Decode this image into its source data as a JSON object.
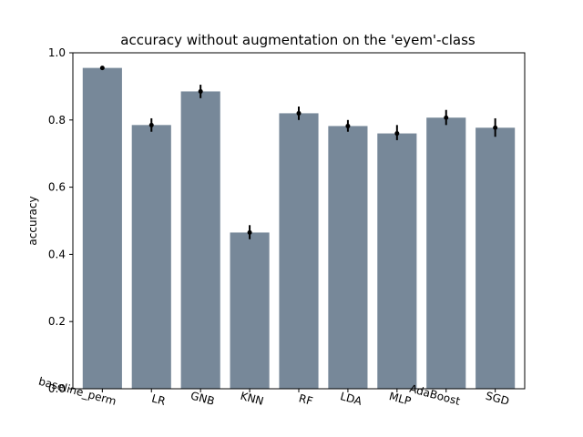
{
  "chart_data": {
    "type": "bar",
    "title": "accuracy without augmentation on the 'eyem'-class",
    "xlabel": "",
    "ylabel": "accuracy",
    "ylim": [
      0.0,
      1.0
    ],
    "yticks": [
      "0.0",
      "0.2",
      "0.4",
      "0.6",
      "0.8",
      "1.0"
    ],
    "categories": [
      "baseline_perm",
      "LR",
      "GNB",
      "KNN",
      "RF",
      "LDA",
      "MLP",
      "AdaBoost",
      "SGD"
    ],
    "values": [
      0.955,
      0.785,
      0.885,
      0.465,
      0.82,
      0.782,
      0.76,
      0.807,
      0.777
    ],
    "error_low": [
      0.95,
      0.765,
      0.865,
      0.445,
      0.8,
      0.765,
      0.74,
      0.785,
      0.75
    ],
    "error_high": [
      0.96,
      0.805,
      0.905,
      0.487,
      0.84,
      0.8,
      0.785,
      0.83,
      0.805
    ],
    "grid": false,
    "bar_color": "#778899",
    "error_color": "#000000"
  }
}
